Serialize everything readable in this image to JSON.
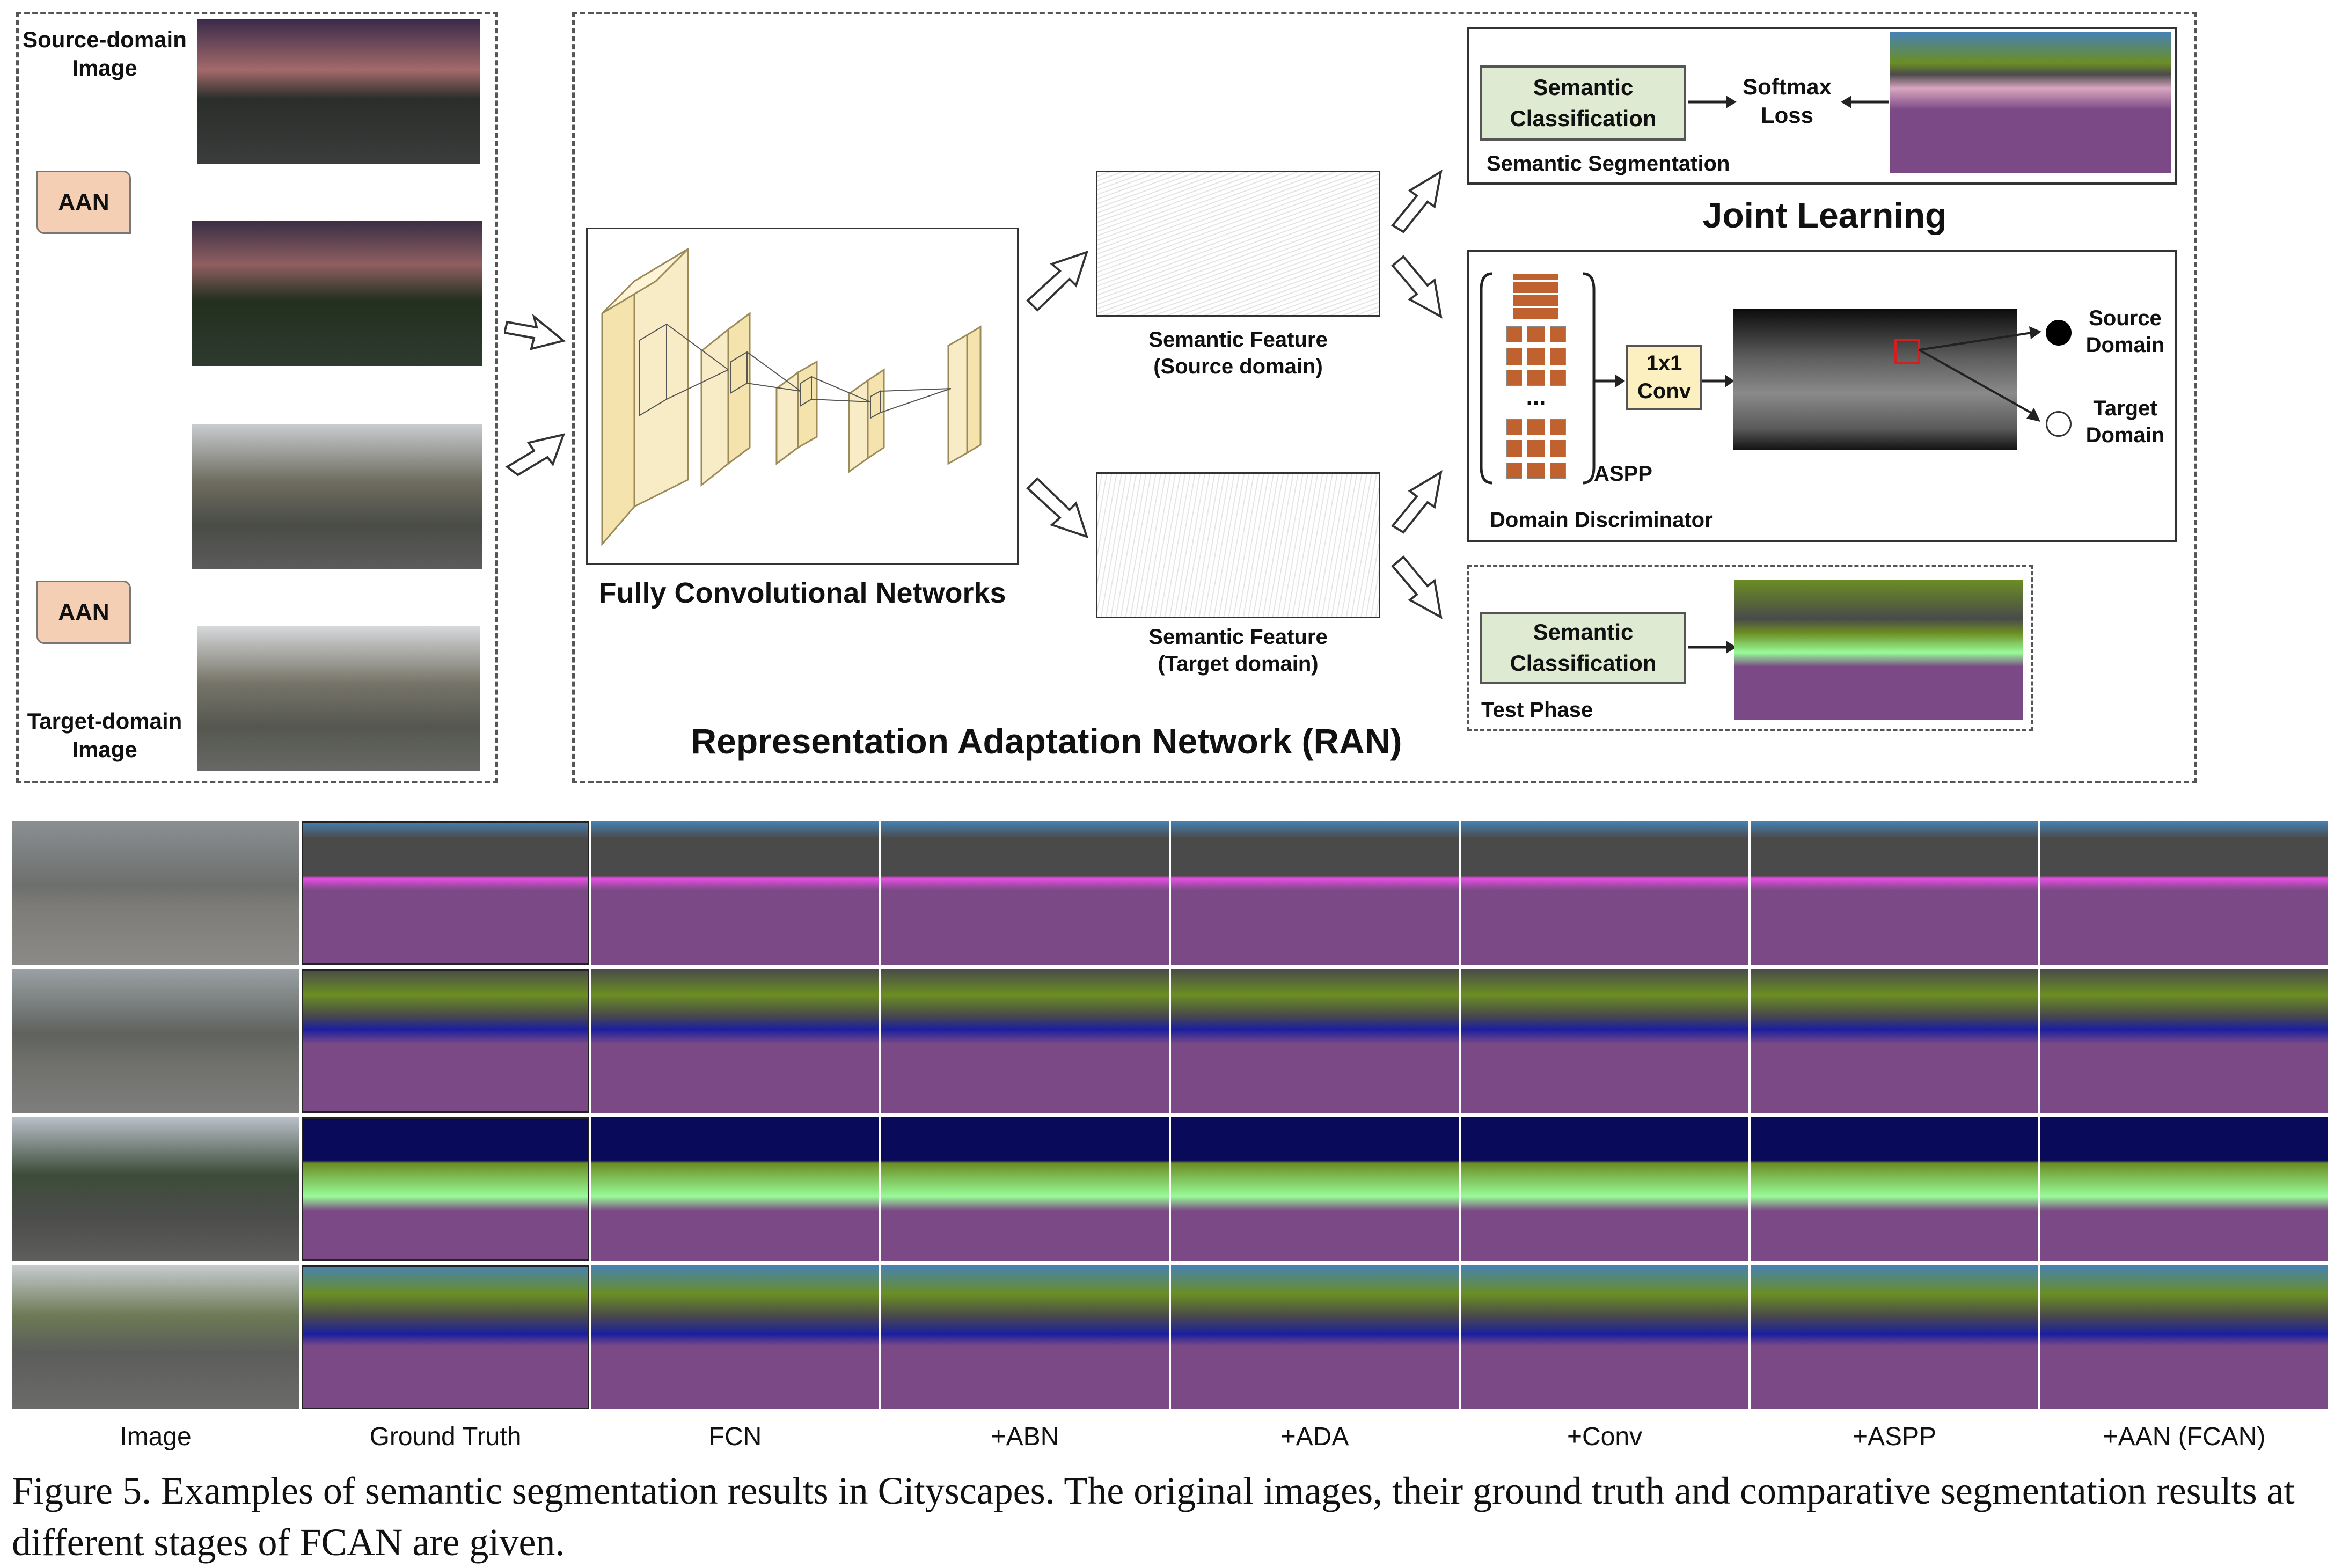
{
  "diagram": {
    "left_panel": {
      "source_label": "Source-domain\nImage",
      "target_label": "Target-domain\nImage",
      "aan_top": "AAN",
      "aan_bottom": "AAN"
    },
    "ran": {
      "fcn_label": "Fully Convolutional Networks",
      "feat_source": "Semantic Feature\n(Source domain)",
      "feat_target": "Semantic Feature\n(Target domain)",
      "title": "Representation Adaptation Network (RAN)"
    },
    "seg_box": {
      "semantic_classification": "Semantic\nClassification",
      "softmax_loss": "Softmax\nLoss",
      "caption": "Semantic Segmentation"
    },
    "joint_learning": "Joint Learning",
    "disc_box": {
      "dots": "...",
      "conv": "1x1\nConv",
      "aspp": "ASPP",
      "caption": "Domain Discriminator",
      "source_domain": "Source\nDomain",
      "target_domain": "Target\nDomain"
    },
    "test_box": {
      "semantic_classification": "Semantic\nClassification",
      "caption": "Test Phase"
    }
  },
  "grid": {
    "columns": [
      "Image",
      "Ground Truth",
      "FCN",
      "+ABN",
      "+ADA",
      "+Conv",
      "+ASPP",
      "+AAN (FCAN)"
    ]
  },
  "caption": "Figure 5. Examples of semantic segmentation results in Cityscapes. The original images, their ground truth and comparative segmentation results at different stages of FCAN are given.",
  "colors": {
    "road": "#7b4a86",
    "sidewalk": "#e64ee0",
    "building": "#4a4a4a",
    "vegetation": "#6b8e23",
    "sky": "#4682b4",
    "car": "#1b1fa0",
    "truck": "#0a0a5a",
    "person": "#dc143c",
    "terrain": "#98fb98",
    "pole": "#999999",
    "sign": "#dcdc00"
  }
}
